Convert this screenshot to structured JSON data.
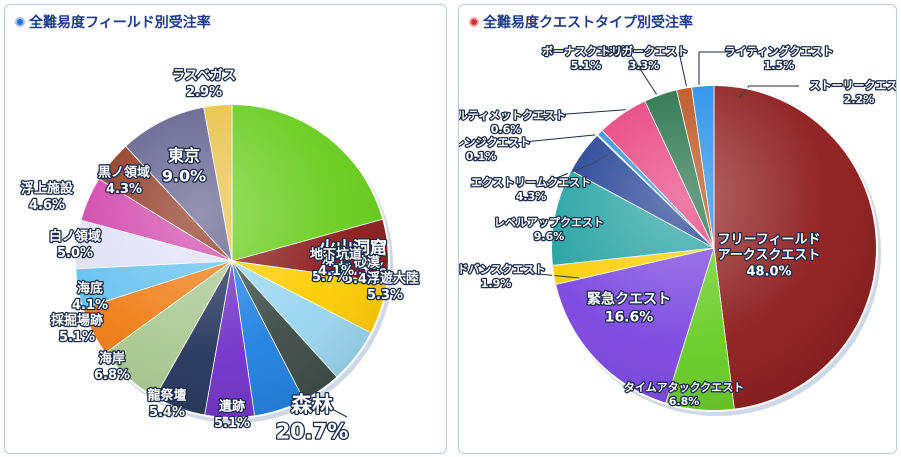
{
  "chart_data": [
    {
      "type": "pie",
      "title": "全難易度フィールド別受注率",
      "accent": "#2a6fd6",
      "slices": [
        {
          "name": "森林",
          "value": "20.7%",
          "v": 20.7,
          "color": "#66cc1a"
        },
        {
          "name": "火山洞窟",
          "value": "6.5%",
          "v": 6.5,
          "color": "#8a1a1a"
        },
        {
          "name": "砂漠",
          "value": "5.4%",
          "v": 5.4,
          "color": "#ffcc00"
        },
        {
          "name": "凍土",
          "value": "5.7%",
          "v": 5.7,
          "color": "#99d6f0"
        },
        {
          "name": "地下坑道",
          "value": "4.1%",
          "v": 4.1,
          "color": "#3a4a44"
        },
        {
          "name": "浮遊大陸",
          "value": "5.3%",
          "v": 5.3,
          "color": "#1e7fe0"
        },
        {
          "name": "遺跡",
          "value": "5.1%",
          "v": 5.1,
          "color": "#7030c8"
        },
        {
          "name": "龍祭壇",
          "value": "5.4%",
          "v": 5.4,
          "color": "#22335a"
        },
        {
          "name": "海岸",
          "value": "6.8%",
          "v": 6.8,
          "color": "#a8c890"
        },
        {
          "name": "採掘場跡",
          "value": "5.1%",
          "v": 5.1,
          "color": "#f07a10"
        },
        {
          "name": "海底",
          "value": "4.1%",
          "v": 4.1,
          "color": "#60c0f0"
        },
        {
          "name": "白ノ領域",
          "value": "5.0%",
          "v": 5.0,
          "color": "#e0e0f8"
        },
        {
          "name": "浮上施設",
          "value": "4.6%",
          "v": 4.6,
          "color": "#d040a8"
        },
        {
          "name": "黒ノ領域",
          "value": "4.3%",
          "v": 4.3,
          "color": "#8c3018"
        },
        {
          "name": "東京",
          "value": "9.0%",
          "v": 9.0,
          "color": "#5c5a8a"
        },
        {
          "name": "ラスベガス",
          "value": "2.9%",
          "v": 2.9,
          "color": "#e8c040"
        }
      ]
    },
    {
      "type": "pie",
      "title": "全難易度クエストタイプ別受注率",
      "accent": "#d63030",
      "slices": [
        {
          "name": "フリーフィールド・アークスクエスト",
          "value": "48.0%",
          "v": 48.0,
          "color": "#8c1a1a"
        },
        {
          "name": "タイムアタッククエスト",
          "value": "6.8%",
          "v": 6.8,
          "color": "#66cc22"
        },
        {
          "name": "緊急クエスト",
          "value": "16.6%",
          "v": 16.6,
          "color": "#7a44e0"
        },
        {
          "name": "アドバンスクエスト",
          "value": "1.9%",
          "v": 1.9,
          "color": "#ffcc00"
        },
        {
          "name": "レベルアップクエスト",
          "value": "9.6%",
          "v": 9.6,
          "color": "#20a0a0"
        },
        {
          "name": "エクストリームクエスト",
          "value": "4.3%",
          "v": 4.3,
          "color": "#1a3a90"
        },
        {
          "name": "チャレンジクエスト",
          "value": "0.1%",
          "v": 0.1,
          "color": "#ff8800"
        },
        {
          "name": "アルティメットクエスト",
          "value": "0.6%",
          "v": 0.6,
          "color": "#2a8ad6"
        },
        {
          "name": "ボーナスクエスト",
          "value": "5.1%",
          "v": 5.1,
          "color": "#e83878"
        },
        {
          "name": "トリガークエスト",
          "value": "3.3%",
          "v": 3.3,
          "color": "#1a6a40"
        },
        {
          "name": "ライティングクエスト",
          "value": "1.5%",
          "v": 1.5,
          "color": "#b84a12"
        },
        {
          "name": "ストーリークエスト",
          "value": "2.2%",
          "v": 2.2,
          "color": "#1a8ae8"
        }
      ]
    }
  ]
}
